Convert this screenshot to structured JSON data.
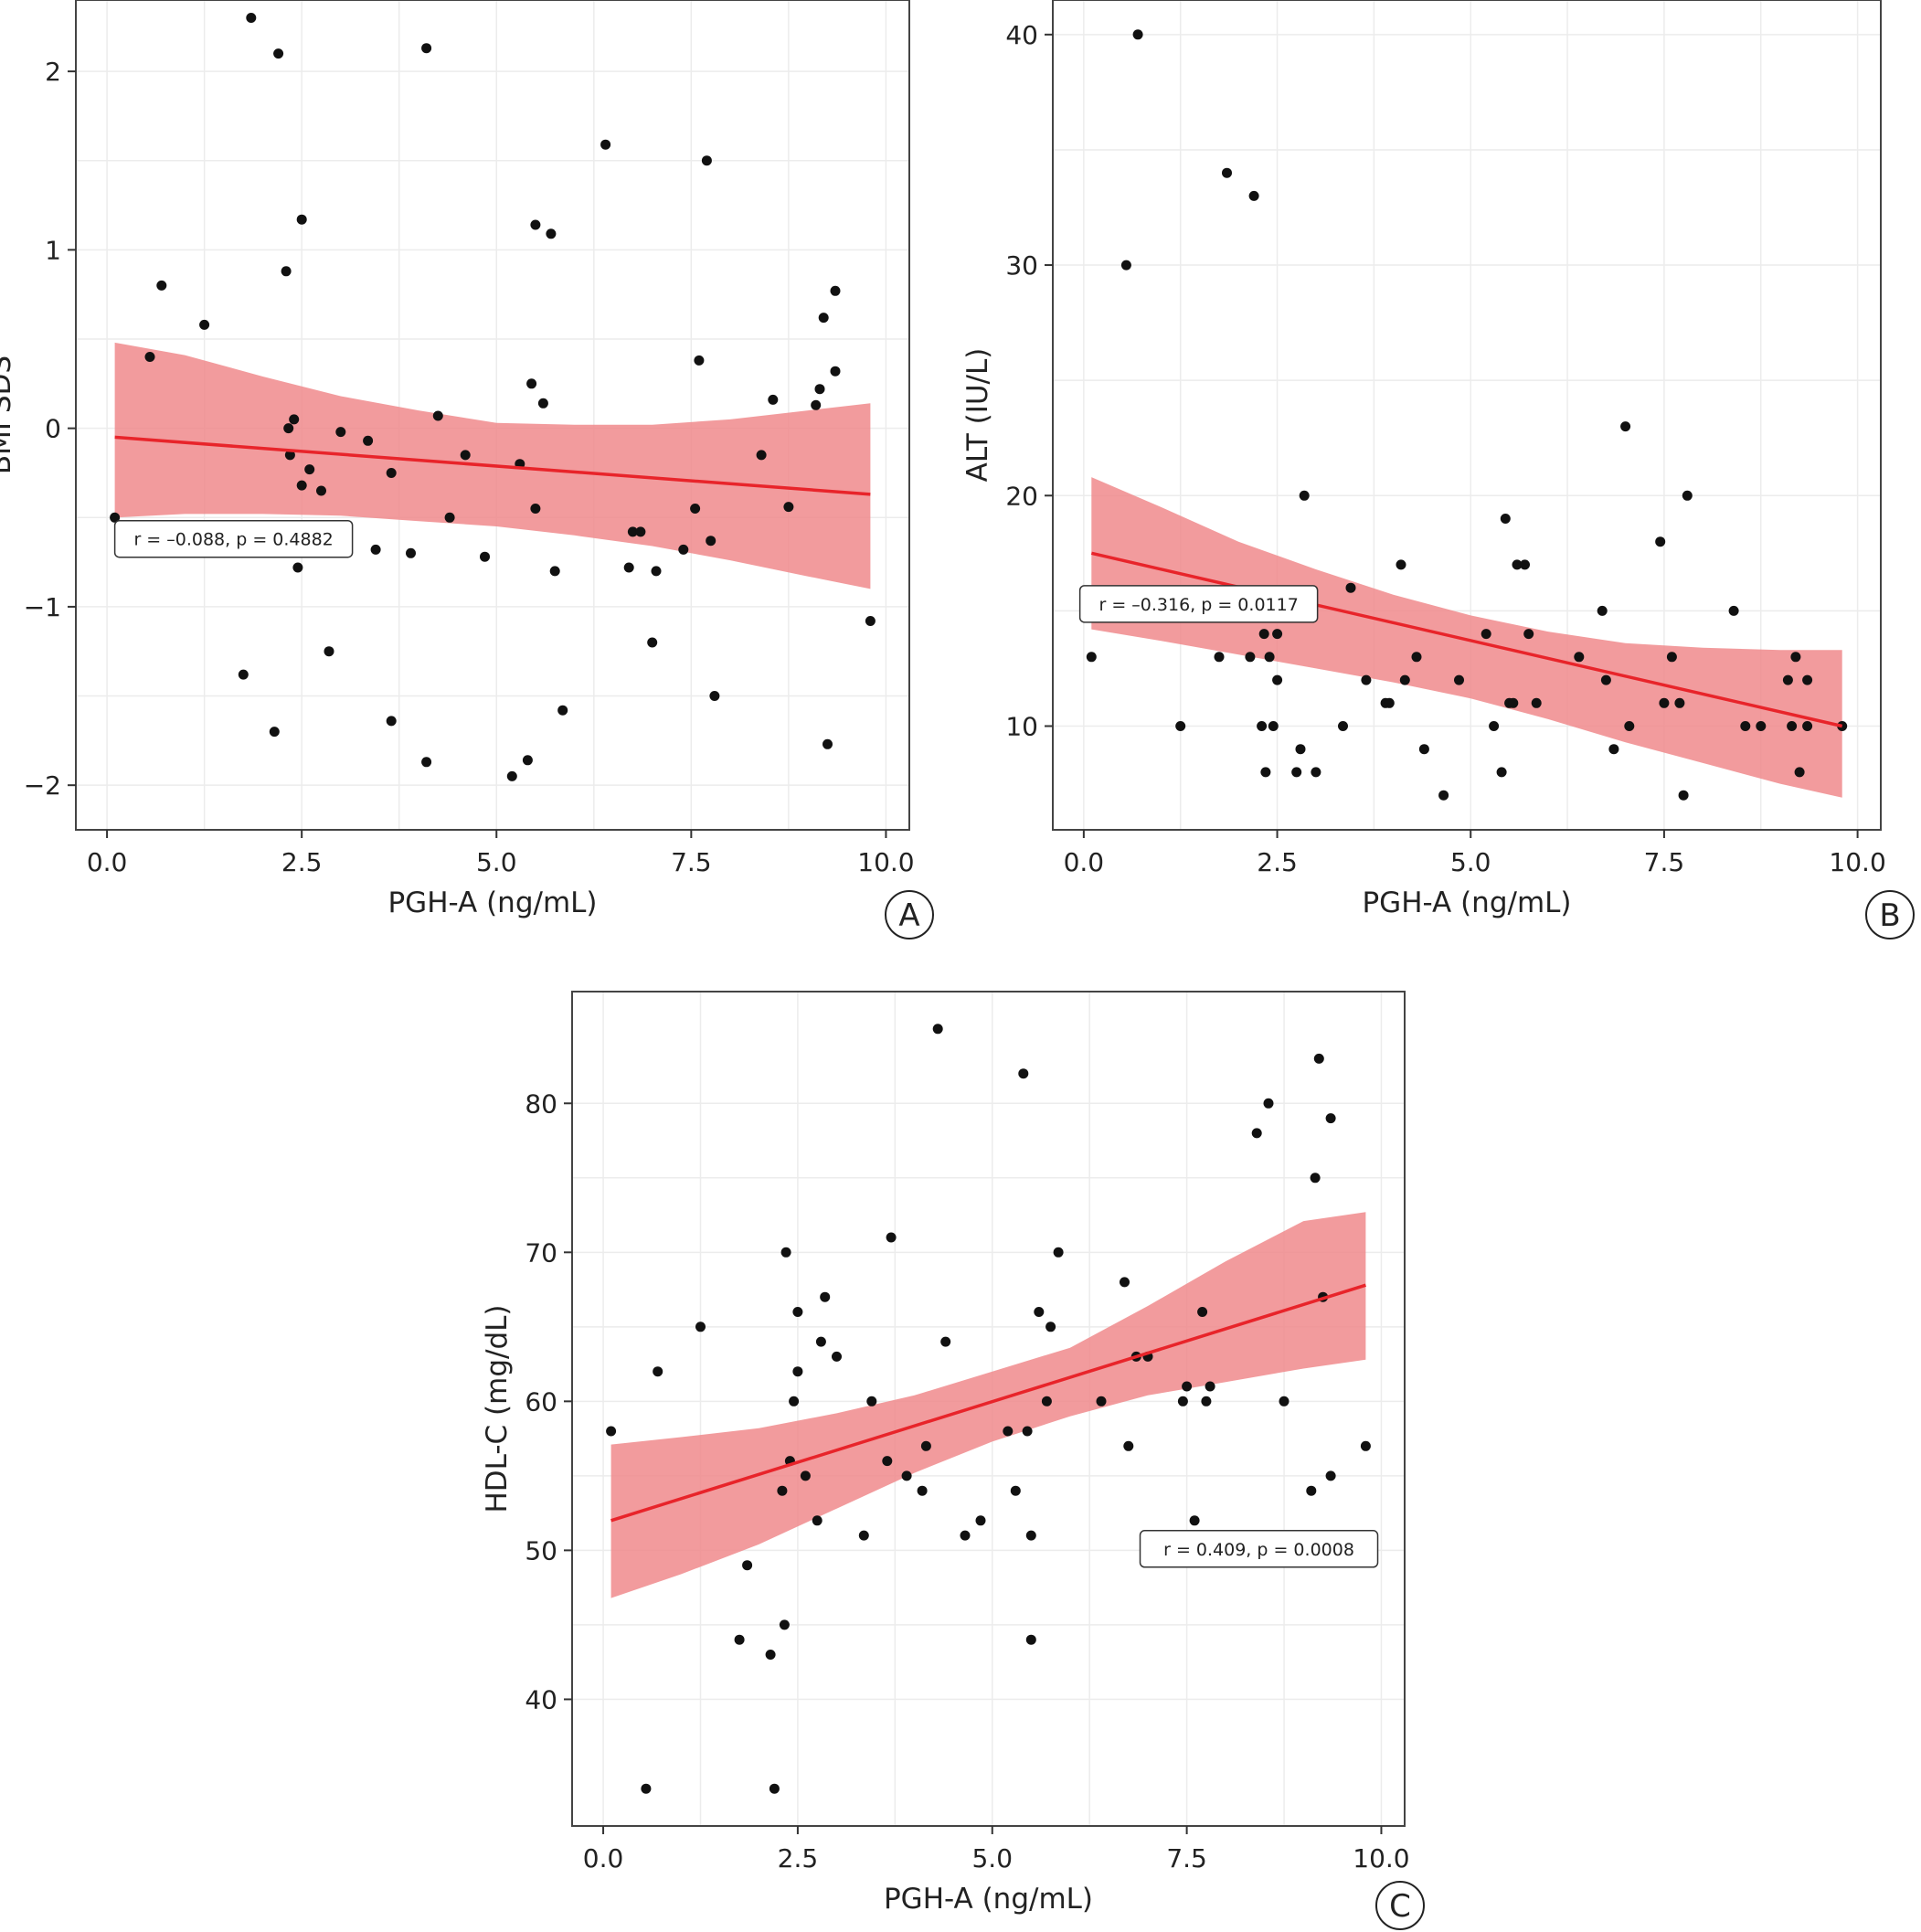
{
  "chart_data": [
    {
      "type": "scatter",
      "panel_label": "A",
      "xlabel": "PGH-A (ng/mL)",
      "ylabel": "BMI SDS",
      "xlim": [
        -0.4,
        10.3
      ],
      "ylim": [
        -2.25,
        2.4
      ],
      "xticks": [
        0.0,
        2.5,
        5.0,
        7.5,
        10.0
      ],
      "xtick_labels": [
        "0.0",
        "2.5",
        "5.0",
        "7.5",
        "10.0"
      ],
      "yticks": [
        -2,
        -1,
        0,
        1,
        2
      ],
      "ytick_labels": [
        "−2",
        "−1",
        "0",
        "1",
        "2"
      ],
      "grid": true,
      "annotation": "r = –0.088, p = 0.4882",
      "annotation_anchor": {
        "x": 0.1,
        "y": -0.62
      },
      "fit": {
        "x": [
          0.1,
          9.8
        ],
        "y": [
          -0.05,
          -0.37
        ]
      },
      "ci_band": {
        "x": [
          0.1,
          1.0,
          2.0,
          3.0,
          4.0,
          5.0,
          6.0,
          7.0,
          8.0,
          9.0,
          9.8
        ],
        "upper": [
          0.48,
          0.41,
          0.29,
          0.18,
          0.1,
          0.03,
          0.02,
          0.02,
          0.05,
          0.1,
          0.14
        ],
        "lower": [
          -0.5,
          -0.48,
          -0.48,
          -0.49,
          -0.52,
          -0.55,
          -0.6,
          -0.66,
          -0.74,
          -0.83,
          -0.9
        ]
      },
      "points": {
        "x": [
          0.1,
          0.55,
          0.7,
          1.25,
          1.75,
          1.85,
          2.15,
          2.2,
          2.3,
          2.33,
          2.35,
          2.4,
          2.45,
          2.5,
          2.5,
          2.6,
          2.75,
          2.85,
          3.0,
          3.35,
          3.45,
          3.65,
          3.65,
          3.9,
          4.1,
          4.1,
          4.25,
          4.4,
          4.6,
          4.85,
          5.2,
          5.3,
          5.4,
          5.45,
          5.5,
          5.5,
          5.6,
          5.7,
          5.75,
          5.85,
          6.4,
          6.7,
          6.75,
          6.85,
          7.0,
          7.05,
          7.4,
          7.55,
          7.6,
          7.7,
          7.75,
          7.8,
          8.4,
          8.55,
          8.75,
          9.1,
          9.15,
          9.2,
          9.25,
          9.35,
          9.35,
          9.8
        ],
        "y": [
          -0.5,
          0.4,
          0.8,
          0.58,
          -1.38,
          2.3,
          -1.7,
          2.1,
          0.88,
          0.0,
          -0.15,
          0.05,
          -0.78,
          -0.32,
          1.17,
          -0.23,
          -0.35,
          -1.25,
          -0.02,
          -0.07,
          -0.68,
          -0.25,
          -1.64,
          -0.7,
          2.13,
          -1.87,
          0.07,
          -0.5,
          -0.15,
          -0.72,
          -1.95,
          -0.2,
          -1.86,
          0.25,
          -0.45,
          1.14,
          0.14,
          1.09,
          -0.8,
          -1.58,
          1.59,
          -0.78,
          -0.58,
          -0.58,
          -1.2,
          -0.8,
          -0.68,
          -0.45,
          0.38,
          1.5,
          -0.63,
          -1.5,
          -0.15,
          0.16,
          -0.44,
          0.13,
          0.22,
          0.62,
          -1.77,
          0.77,
          0.32,
          -1.08
        ]
      }
    },
    {
      "type": "scatter",
      "panel_label": "B",
      "xlabel": "PGH-A (ng/mL)",
      "ylabel": "ALT (IU/L)",
      "xlim": [
        -0.4,
        10.3
      ],
      "ylim": [
        5.5,
        41.5
      ],
      "xticks": [
        0.0,
        2.5,
        5.0,
        7.5,
        10.0
      ],
      "xtick_labels": [
        "0.0",
        "2.5",
        "5.0",
        "7.5",
        "10.0"
      ],
      "yticks": [
        10,
        20,
        30,
        40
      ],
      "ytick_labels": [
        "10",
        "20",
        "30",
        "40"
      ],
      "grid": true,
      "annotation": "r = –0.316, p = 0.0117",
      "annotation_anchor": {
        "x": -0.05,
        "y": 15.3
      },
      "fit": {
        "x": [
          0.1,
          9.8
        ],
        "y": [
          17.5,
          10.0
        ]
      },
      "ci_band": {
        "x": [
          0.1,
          1.0,
          2.0,
          3.0,
          4.0,
          5.0,
          6.0,
          7.0,
          8.0,
          9.0,
          9.8
        ],
        "upper": [
          20.8,
          19.5,
          18.0,
          16.8,
          15.7,
          14.8,
          14.1,
          13.6,
          13.4,
          13.3,
          13.3
        ],
        "lower": [
          14.2,
          13.7,
          13.1,
          12.5,
          11.9,
          11.2,
          10.3,
          9.3,
          8.4,
          7.5,
          6.9
        ]
      },
      "points": {
        "x": [
          0.1,
          0.55,
          0.7,
          1.25,
          1.75,
          1.85,
          2.15,
          2.2,
          2.3,
          2.33,
          2.35,
          2.4,
          2.45,
          2.5,
          2.5,
          2.75,
          2.8,
          2.85,
          3.0,
          3.35,
          3.45,
          3.65,
          3.9,
          3.95,
          4.1,
          4.15,
          4.3,
          4.4,
          4.65,
          4.85,
          5.2,
          5.3,
          5.4,
          5.45,
          5.5,
          5.55,
          5.6,
          5.7,
          5.75,
          5.85,
          6.4,
          6.7,
          6.75,
          6.85,
          7.0,
          7.05,
          7.45,
          7.5,
          7.6,
          7.7,
          7.75,
          7.8,
          8.4,
          8.55,
          8.75,
          9.1,
          9.15,
          9.2,
          9.25,
          9.35,
          9.35,
          9.8
        ],
        "y": [
          13,
          30,
          40,
          10,
          13,
          34,
          13,
          33,
          10,
          14,
          8,
          13,
          10,
          14,
          12,
          8,
          9,
          20,
          8,
          10,
          16,
          12,
          11,
          11,
          17,
          12,
          13,
          9,
          7,
          12,
          14,
          10,
          8,
          19,
          11,
          11,
          17,
          17,
          14,
          11,
          13,
          15,
          12,
          9,
          23,
          10,
          18,
          11,
          13,
          11,
          7,
          20,
          15,
          10,
          10,
          12,
          10,
          13,
          8,
          12,
          10,
          10
        ]
      }
    },
    {
      "type": "scatter",
      "panel_label": "C",
      "xlabel": "PGH-A (ng/mL)",
      "ylabel": "HDL-C (mg/dL)",
      "xlim": [
        -0.4,
        10.3
      ],
      "ylim": [
        31.5,
        87.5
      ],
      "xticks": [
        0.0,
        2.5,
        5.0,
        7.5,
        10.0
      ],
      "xtick_labels": [
        "0.0",
        "2.5",
        "5.0",
        "7.5",
        "10.0"
      ],
      "yticks": [
        40,
        50,
        60,
        70,
        80
      ],
      "ytick_labels": [
        "40",
        "50",
        "60",
        "70",
        "80"
      ],
      "grid": true,
      "annotation": "r = 0.409, p = 0.0008",
      "annotation_anchor": {
        "x": 6.9,
        "y": 50.1
      },
      "fit": {
        "x": [
          0.1,
          9.8
        ],
        "y": [
          52.0,
          67.8
        ]
      },
      "ci_band": {
        "x": [
          0.1,
          1.0,
          2.0,
          3.0,
          4.0,
          5.0,
          6.0,
          7.0,
          8.0,
          9.0,
          9.8
        ],
        "upper": [
          57.1,
          57.6,
          58.2,
          59.2,
          60.4,
          62.0,
          63.6,
          66.4,
          69.4,
          72.1,
          72.7
        ],
        "lower": [
          46.8,
          48.4,
          50.4,
          52.8,
          55.2,
          57.3,
          59.0,
          60.4,
          61.3,
          62.2,
          62.8
        ]
      },
      "points": {
        "x": [
          0.1,
          0.55,
          0.7,
          1.25,
          1.75,
          1.85,
          2.15,
          2.2,
          2.3,
          2.33,
          2.35,
          2.4,
          2.45,
          2.5,
          2.5,
          2.6,
          2.75,
          2.8,
          2.85,
          3.0,
          3.35,
          3.45,
          3.65,
          3.7,
          3.9,
          4.1,
          4.15,
          4.3,
          4.4,
          4.65,
          4.85,
          5.2,
          5.3,
          5.4,
          5.45,
          5.5,
          5.5,
          5.6,
          5.7,
          5.75,
          5.85,
          6.4,
          6.7,
          6.75,
          6.85,
          7.0,
          7.45,
          7.5,
          7.6,
          7.7,
          7.75,
          7.8,
          8.4,
          8.55,
          8.75,
          9.1,
          9.15,
          9.2,
          9.25,
          9.35,
          9.35,
          9.8
        ],
        "y": [
          58,
          34,
          62,
          65,
          44,
          49,
          43,
          34,
          54,
          45,
          70,
          56,
          60,
          62,
          66,
          55,
          52,
          64,
          67,
          63,
          51,
          60,
          56,
          71,
          55,
          54,
          57,
          85,
          64,
          51,
          52,
          58,
          54,
          82,
          58,
          44,
          51,
          66,
          60,
          65,
          70,
          60,
          68,
          57,
          63,
          63,
          60,
          61,
          52,
          66,
          60,
          61,
          78,
          80,
          60,
          54,
          75,
          83,
          67,
          55,
          79,
          57
        ]
      }
    }
  ]
}
